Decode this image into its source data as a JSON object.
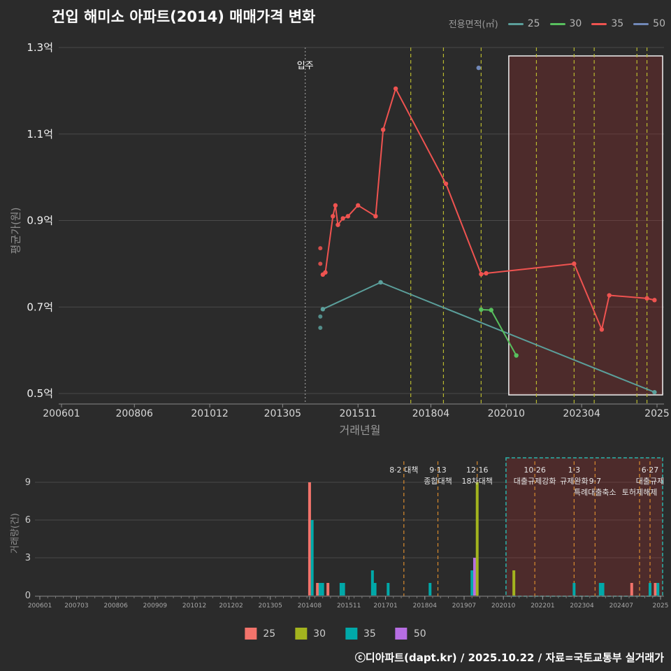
{
  "title": "건입 해미소 아파트(2014) 매매가격 변화",
  "footer": "ⓒ디아파트(dapt.kr) / 2025.10.22 / 자료=국토교통부 실거래가",
  "legend_top": {
    "label": "전용면적(㎡)",
    "items": [
      {
        "label": "25",
        "color": "#5b9f9b"
      },
      {
        "label": "30",
        "color": "#58c05e"
      },
      {
        "label": "35",
        "color": "#ef5350"
      },
      {
        "label": "50",
        "color": "#7188b8"
      }
    ]
  },
  "legend_bottom": {
    "items": [
      {
        "label": "25",
        "color": "#f2736b"
      },
      {
        "label": "30",
        "color": "#a3b41e"
      },
      {
        "label": "35",
        "color": "#00a9a9"
      },
      {
        "label": "50",
        "color": "#b76ee3"
      }
    ]
  },
  "chart_data": [
    {
      "type": "line",
      "title": "건입 해미소 아파트(2014) 매매가격 변화",
      "xlabel": "거래년월",
      "ylabel": "평균가(원)",
      "ylim": [
        0.5,
        1.3
      ],
      "yticks": [
        {
          "v": 1.3,
          "label": "1.3억"
        },
        {
          "v": 1.1,
          "label": "1.1억"
        },
        {
          "v": 0.9,
          "label": "0.9억"
        },
        {
          "v": 0.7,
          "label": "0.7억"
        },
        {
          "v": 0.5,
          "label": "0.5억"
        }
      ],
      "xticks": [
        "200601",
        "200806",
        "201012",
        "201305",
        "201511",
        "201804",
        "202010",
        "202304",
        "2025"
      ],
      "series": [
        {
          "name": "25",
          "color": "#5b9f9b",
          "points": [
            [
              "201409",
              0.695
            ],
            [
              "201608",
              0.757
            ],
            [
              "202509",
              0.503
            ]
          ],
          "scatter": [
            [
              "201408",
              0.678
            ],
            [
              "201408",
              0.652
            ]
          ]
        },
        {
          "name": "30",
          "color": "#58c05e",
          "points": [
            [
              "201912",
              0.694
            ],
            [
              "202004",
              0.693
            ],
            [
              "202102",
              0.588
            ]
          ],
          "scatter": []
        },
        {
          "name": "35",
          "color": "#ef5350",
          "points": [
            [
              "201409",
              0.775
            ],
            [
              "201410",
              0.78
            ],
            [
              "201501",
              0.91
            ],
            [
              "201502",
              0.935
            ],
            [
              "201503",
              0.89
            ],
            [
              "201505",
              0.905
            ],
            [
              "201507",
              0.91
            ],
            [
              "201511",
              0.935
            ],
            [
              "201606",
              0.91
            ],
            [
              "201609",
              1.11
            ],
            [
              "201702",
              1.205
            ],
            [
              "201810",
              0.985
            ],
            [
              "201912",
              0.776
            ],
            [
              "202002",
              0.778
            ],
            [
              "202301",
              0.8
            ],
            [
              "202312",
              0.648
            ],
            [
              "202403",
              0.727
            ],
            [
              "202506",
              0.72
            ],
            [
              "202509",
              0.716
            ]
          ],
          "scatter": [
            [
              "201408",
              0.836
            ],
            [
              "201408",
              0.8
            ]
          ]
        },
        {
          "name": "50",
          "color": "#7188b8",
          "points": [
            [
              "201911",
              1.253
            ]
          ],
          "scatter": []
        }
      ],
      "move_in": {
        "label": "입주",
        "month": "201402"
      },
      "highlight": {
        "from": "202011",
        "to": "202510"
      },
      "policy_months": [
        "201708",
        "201809",
        "201912",
        "202110",
        "202301",
        "202309",
        "202502",
        "202506"
      ]
    },
    {
      "type": "bar",
      "ylabel": "거래량(건)",
      "ylim": [
        0,
        9
      ],
      "yticks": [
        0,
        3,
        6,
        9
      ],
      "xticks": [
        "200601",
        "200703",
        "200806",
        "200909",
        "201012",
        "201202",
        "201305",
        "201408",
        "201511",
        "201701",
        "201804",
        "201907",
        "202010",
        "202201",
        "202304",
        "202407",
        "2025"
      ],
      "bars": [
        {
          "m": "201408",
          "size": "25",
          "v": 9
        },
        {
          "m": "201409",
          "size": "35",
          "v": 6
        },
        {
          "m": "201411",
          "size": "25",
          "v": 1
        },
        {
          "m": "201412",
          "size": "35",
          "v": 1
        },
        {
          "m": "201501",
          "size": "35",
          "v": 1
        },
        {
          "m": "201503",
          "size": "25",
          "v": 1
        },
        {
          "m": "201508",
          "size": "35",
          "v": 1
        },
        {
          "m": "201509",
          "size": "35",
          "v": 1
        },
        {
          "m": "201608",
          "size": "35",
          "v": 2
        },
        {
          "m": "201609",
          "size": "35",
          "v": 1
        },
        {
          "m": "201702",
          "size": "35",
          "v": 1
        },
        {
          "m": "201806",
          "size": "35",
          "v": 1
        },
        {
          "m": "201910",
          "size": "35",
          "v": 2
        },
        {
          "m": "201911",
          "size": "50",
          "v": 3
        },
        {
          "m": "201912",
          "size": "30",
          "v": 9
        },
        {
          "m": "202102",
          "size": "30",
          "v": 2
        },
        {
          "m": "202301",
          "size": "35",
          "v": 1
        },
        {
          "m": "202311",
          "size": "35",
          "v": 1
        },
        {
          "m": "202312",
          "size": "35",
          "v": 1
        },
        {
          "m": "202411",
          "size": "25",
          "v": 1
        },
        {
          "m": "202506",
          "size": "35",
          "v": 1
        },
        {
          "m": "202508",
          "size": "25",
          "v": 1
        },
        {
          "m": "202509",
          "size": "35",
          "v": 1
        }
      ],
      "policies": [
        {
          "m": "201708",
          "labels": [
            {
              "text": "8·2 대책",
              "row": 0
            }
          ]
        },
        {
          "m": "201809",
          "labels": [
            {
              "text": "9·13",
              "row": 0
            },
            {
              "text": "종합대책",
              "row": 1
            }
          ]
        },
        {
          "m": "201912",
          "labels": [
            {
              "text": "12·16",
              "row": 0
            },
            {
              "text": "18차대책",
              "row": 1
            }
          ]
        },
        {
          "m": "202110",
          "labels": [
            {
              "text": "10·26",
              "row": 0
            },
            {
              "text": "대출규제강화",
              "row": 1
            }
          ]
        },
        {
          "m": "202301",
          "labels": [
            {
              "text": "1·3",
              "row": 0
            },
            {
              "text": "규제완화",
              "row": 1
            }
          ]
        },
        {
          "m": "202309",
          "labels": [
            {
              "text": "9·7",
              "row": 1
            },
            {
              "text": "특례대출축소",
              "row": 2
            }
          ]
        },
        {
          "m": "202502",
          "labels": [
            {
              "text": "토허제해제",
              "row": 2
            }
          ]
        },
        {
          "m": "202506",
          "labels": [
            {
              "text": "6·27",
              "row": 0
            },
            {
              "text": "대출규제",
              "row": 1
            }
          ]
        }
      ],
      "highlight": {
        "from": "202011",
        "to": "202510"
      }
    }
  ]
}
